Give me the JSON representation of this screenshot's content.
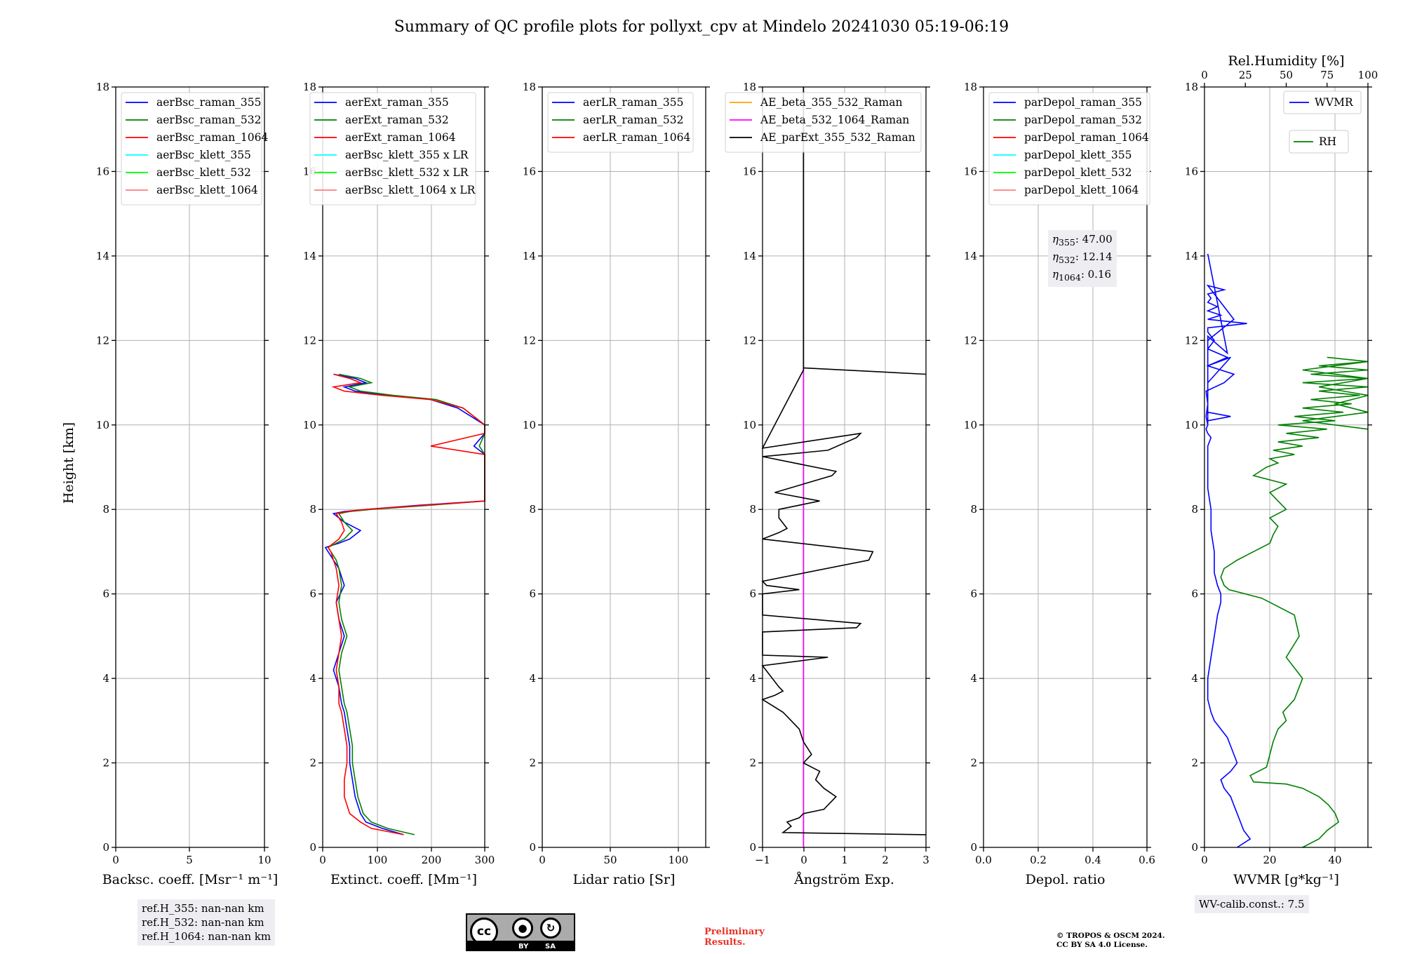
{
  "title": "Summary of QC profile plots for pollyxt_cpv at Mindelo 20241030 05:19-06:19",
  "ylabel": "Height [km]",
  "colors": {
    "blue": "#0000ff",
    "green": "#008000",
    "red": "#ff0000",
    "cyan": "#00ffff",
    "lime": "#00ff00",
    "salmon": "#ff7f7f",
    "orange": "#ffa500",
    "magenta": "#ff00ff",
    "black": "#000000"
  },
  "chart_data": [
    {
      "type": "line",
      "xlabel": "Backsc. coeff. [Msr⁻¹ m⁻¹]",
      "xlim": [
        -1,
        10
      ],
      "ylim": [
        0,
        18
      ],
      "xticks": [
        "0",
        "5",
        "10"
      ],
      "yticks": [
        "0",
        "2",
        "4",
        "6",
        "8",
        "10",
        "12",
        "14",
        "16",
        "18"
      ],
      "legend": {
        "position": "top-left",
        "entries": [
          "aerBsc_raman_355",
          "aerBsc_raman_532",
          "aerBsc_raman_1064",
          "aerBsc_klett_355",
          "aerBsc_klett_532",
          "aerBsc_klett_1064"
        ]
      },
      "series": []
    },
    {
      "type": "line",
      "xlabel": "Extinct. coeff. [Mm⁻¹]",
      "xlim": [
        0,
        300
      ],
      "ylim": [
        0,
        18
      ],
      "xticks": [
        "0",
        "100",
        "200",
        "300"
      ],
      "yticks": [
        "0",
        "2",
        "4",
        "6",
        "8",
        "10",
        "12",
        "14",
        "16",
        "18"
      ],
      "legend": {
        "position": "top-left",
        "entries": [
          "aerExt_raman_355",
          "aerExt_raman_532",
          "aerExt_raman_1064",
          "aerBsc_klett_355 x LR",
          "aerBsc_klett_532 x LR",
          "aerBsc_klett_1064 x LR"
        ]
      },
      "series": [
        {
          "name": "aerExt_raman_355",
          "color": "blue",
          "x": [
            150,
            110,
            80,
            70,
            60,
            55,
            50,
            50,
            45,
            40,
            35,
            30,
            20,
            30,
            40,
            30,
            25,
            40,
            30,
            20,
            10,
            5,
            30,
            50,
            70,
            40,
            20,
            40,
            80,
            180,
            300,
            300,
            280,
            300,
            300,
            250,
            200,
            120,
            60,
            40,
            80,
            60,
            20
          ],
          "y": [
            0.3,
            0.45,
            0.6,
            0.8,
            1.2,
            1.6,
            2.0,
            2.4,
            2.8,
            3.2,
            3.4,
            3.8,
            4.2,
            4.6,
            5.0,
            5.4,
            5.8,
            6.2,
            6.6,
            6.8,
            7.0,
            7.1,
            7.2,
            7.3,
            7.5,
            7.7,
            7.9,
            7.95,
            8.0,
            8.1,
            8.2,
            9.3,
            9.5,
            9.8,
            10.0,
            10.4,
            10.6,
            10.7,
            10.8,
            10.9,
            11.0,
            11.1,
            11.2
          ]
        },
        {
          "name": "aerExt_raman_532",
          "color": "green",
          "x": [
            170,
            120,
            90,
            75,
            65,
            60,
            55,
            55,
            50,
            45,
            40,
            35,
            30,
            35,
            45,
            35,
            30,
            35,
            30,
            25,
            15,
            10,
            25,
            40,
            55,
            40,
            30,
            50,
            90,
            200,
            300,
            300,
            290,
            300,
            300,
            260,
            210,
            130,
            70,
            50,
            90,
            70,
            30
          ],
          "y": [
            0.3,
            0.45,
            0.6,
            0.8,
            1.2,
            1.6,
            2.0,
            2.4,
            2.8,
            3.2,
            3.4,
            3.8,
            4.2,
            4.6,
            5.0,
            5.4,
            5.8,
            6.2,
            6.6,
            6.8,
            7.0,
            7.1,
            7.2,
            7.3,
            7.5,
            7.7,
            7.9,
            7.95,
            8.0,
            8.1,
            8.2,
            9.3,
            9.5,
            9.8,
            10.0,
            10.4,
            10.6,
            10.7,
            10.8,
            10.9,
            11.0,
            11.1,
            11.2
          ]
        },
        {
          "name": "aerExt_raman_1064",
          "color": "red",
          "x": [
            150,
            90,
            70,
            50,
            40,
            40,
            45,
            45,
            40,
            35,
            30,
            30,
            25,
            30,
            35,
            30,
            25,
            30,
            25,
            20,
            15,
            10,
            20,
            30,
            40,
            35,
            25,
            45,
            80,
            190,
            300,
            300,
            200,
            300,
            300,
            260,
            200,
            110,
            40,
            20,
            70,
            50,
            20
          ],
          "y": [
            0.3,
            0.45,
            0.6,
            0.8,
            1.2,
            1.6,
            2.0,
            2.4,
            2.8,
            3.2,
            3.4,
            3.8,
            4.2,
            4.6,
            5.0,
            5.4,
            5.8,
            6.2,
            6.6,
            6.8,
            7.0,
            7.1,
            7.2,
            7.3,
            7.5,
            7.7,
            7.9,
            7.95,
            8.0,
            8.1,
            8.2,
            9.3,
            9.5,
            9.8,
            10.0,
            10.4,
            10.6,
            10.7,
            10.8,
            10.9,
            11.0,
            11.1,
            11.2
          ]
        }
      ]
    },
    {
      "type": "line",
      "xlabel": "Lidar ratio [Sr]",
      "xlim": [
        0,
        120
      ],
      "ylim": [
        0,
        18
      ],
      "xticks": [
        "0",
        "50",
        "100"
      ],
      "yticks": [
        "0",
        "2",
        "4",
        "6",
        "8",
        "10",
        "12",
        "14",
        "16",
        "18"
      ],
      "legend": {
        "position": "top-left",
        "entries": [
          "aerLR_raman_355",
          "aerLR_raman_532",
          "aerLR_raman_1064"
        ]
      },
      "series": []
    },
    {
      "type": "line",
      "xlabel": "Ångström Exp.",
      "xlim": [
        -1,
        3
      ],
      "ylim": [
        0,
        18
      ],
      "xticks": [
        "−1",
        "0",
        "1",
        "2",
        "3"
      ],
      "yticks": [
        "0",
        "2",
        "4",
        "6",
        "8",
        "10",
        "12",
        "14",
        "16",
        "18"
      ],
      "legend": {
        "position": "top-left",
        "entries": [
          "AE_beta_355_532_Raman",
          "AE_beta_532_1064_Raman",
          "AE_parExt_355_532_Raman"
        ]
      },
      "series": [
        {
          "name": "AE_beta_532_1064_Raman",
          "color": "magenta",
          "x": [
            0,
            0
          ],
          "y": [
            0,
            18
          ]
        },
        {
          "name": "AE_parExt_355_532_Raman",
          "color": "black",
          "x": [
            3,
            -0.5,
            -0.3,
            -0.4,
            -0.1,
            0,
            0.5,
            0.8,
            0.5,
            0.3,
            0.4,
            0,
            0.2,
            0,
            -0.1,
            -0.3,
            -0.5,
            -1,
            -0.7,
            -0.5,
            -0.6,
            -1,
            0.2,
            0.6,
            -1,
            -1,
            1.3,
            1.4,
            -1,
            -1,
            -0.1,
            -0.9,
            -1,
            1.6,
            1.7,
            -1,
            -0.6,
            -0.4,
            -0.6,
            -0.6,
            0.4,
            -0.7,
            0.7,
            0.8,
            -1,
            0.6,
            1.3,
            1.4,
            -1,
            0,
            0,
            3,
            0,
            0
          ],
          "y": [
            0.3,
            0.35,
            0.5,
            0.6,
            0.7,
            0.8,
            0.9,
            1.2,
            1.4,
            1.6,
            1.8,
            2.0,
            2.2,
            2.5,
            2.8,
            3.0,
            3.2,
            3.5,
            3.6,
            3.7,
            3.8,
            4.3,
            4.45,
            4.5,
            4.55,
            5.1,
            5.2,
            5.3,
            5.5,
            6.0,
            6.1,
            6.2,
            6.3,
            6.8,
            7.0,
            7.3,
            7.45,
            7.55,
            7.8,
            8.0,
            8.2,
            8.4,
            8.8,
            8.9,
            9.25,
            9.4,
            9.7,
            9.8,
            9.45,
            11.3,
            11.35,
            11.2,
            11.35,
            18
          ]
        }
      ]
    },
    {
      "type": "line",
      "xlabel": "Depol. ratio",
      "xlim": [
        0,
        0.6
      ],
      "ylim": [
        0,
        18
      ],
      "xticks": [
        "0.0",
        "0.2",
        "0.4",
        "0.6"
      ],
      "yticks": [
        "0",
        "2",
        "4",
        "6",
        "8",
        "10",
        "12",
        "14",
        "16",
        "18"
      ],
      "legend": {
        "position": "top-left",
        "entries": [
          "parDepol_raman_355",
          "parDepol_raman_532",
          "parDepol_raman_1064",
          "parDepol_klett_355",
          "parDepol_klett_532",
          "parDepol_klett_1064"
        ]
      },
      "series": []
    },
    {
      "type": "line",
      "xlabel": "WVMR [g*kg⁻¹]",
      "xlim": [
        0,
        50
      ],
      "ylim": [
        0,
        18
      ],
      "x2label": "Rel.Humidity [%]",
      "x2lim": [
        0,
        100
      ],
      "xticks": [
        "0",
        "20",
        "40"
      ],
      "x2ticks": [
        "0",
        "25",
        "50",
        "75",
        "100"
      ],
      "yticks": [
        "0",
        "2",
        "4",
        "6",
        "8",
        "10",
        "12",
        "14",
        "16",
        "18"
      ],
      "legend": {
        "position": "top-right",
        "entries": [
          "WVMR",
          "RH"
        ]
      },
      "series": [
        {
          "name": "WVMR",
          "color": "blue",
          "x": [
            10,
            14,
            12,
            11,
            10,
            9,
            8,
            6,
            5,
            8,
            10,
            9,
            8,
            7,
            5,
            3,
            2,
            1,
            1,
            2,
            3,
            4,
            5,
            5,
            4,
            3,
            3,
            2,
            2,
            1,
            1,
            1,
            1,
            2,
            1,
            0.5,
            1,
            0.5,
            1,
            0.5,
            6,
            9,
            1,
            7,
            1,
            3,
            1,
            1,
            13,
            1,
            5,
            1,
            4,
            1,
            2,
            1,
            6,
            1,
            9,
            1,
            1,
            1,
            8,
            1,
            1,
            1,
            1,
            1,
            1,
            1,
            8,
            1,
            1,
            1,
            7,
            1
          ],
          "y": [
            0,
            0.2,
            0.4,
            0.6,
            0.8,
            1.0,
            1.2,
            1.4,
            1.6,
            1.8,
            2.0,
            2.2,
            2.4,
            2.6,
            2.8,
            3.0,
            3.2,
            3.5,
            4.0,
            4.5,
            5.0,
            5.5,
            5.8,
            6.0,
            6.2,
            6.5,
            7.0,
            7.5,
            8.0,
            8.5,
            9.0,
            9.3,
            9.5,
            9.7,
            9.8,
            9.9,
            10.0,
            10.2,
            10.5,
            10.8,
            11.0,
            11.2,
            11.4,
            11.6,
            11.8,
            12.0,
            12.2,
            12.3,
            12.4,
            12.5,
            12.6,
            12.7,
            12.8,
            12.9,
            13.0,
            13.1,
            13.2,
            13.3,
            12.5,
            12.0,
            11.5,
            11.0,
            11.6,
            11.4,
            11.2,
            11.0,
            10.8,
            10.6,
            10.4,
            10.3,
            10.2,
            10.1,
            10.0,
            12.1,
            11.7,
            14.05
          ]
        },
        {
          "name": "RH",
          "color": "green",
          "x": [
            60,
            70,
            75,
            82,
            80,
            76,
            70,
            60,
            50,
            30,
            28,
            38,
            40,
            42,
            45,
            50,
            48,
            55,
            60,
            50,
            58,
            55,
            45,
            35,
            25,
            15,
            12,
            10,
            12,
            20,
            30,
            40,
            42,
            45,
            40,
            50,
            45,
            40,
            50,
            30,
            38,
            45,
            40,
            55,
            42,
            60,
            45,
            70,
            50,
            75,
            45,
            80,
            55,
            85,
            60,
            90,
            65,
            95,
            70,
            100,
            60,
            100,
            65,
            100,
            70,
            100,
            75,
            100,
            60,
            100,
            70,
            100,
            80,
            100,
            60,
            100
          ],
          "y": [
            0,
            0.2,
            0.4,
            0.6,
            0.8,
            1.0,
            1.2,
            1.4,
            1.5,
            1.55,
            1.7,
            1.9,
            2.2,
            2.5,
            2.8,
            3.0,
            3.2,
            3.5,
            4.0,
            4.5,
            5.0,
            5.5,
            5.7,
            5.9,
            6.0,
            6.1,
            6.2,
            6.4,
            6.6,
            6.8,
            7.0,
            7.2,
            7.4,
            7.6,
            7.8,
            8.0,
            8.2,
            8.4,
            8.6,
            8.8,
            9.0,
            9.1,
            9.2,
            9.3,
            9.4,
            9.5,
            9.6,
            9.7,
            9.8,
            9.9,
            10.0,
            10.1,
            10.2,
            10.3,
            10.4,
            10.5,
            10.6,
            10.7,
            10.8,
            10.9,
            11.0,
            11.1,
            11.2,
            11.3,
            11.4,
            11.5,
            11.6,
            11.5,
            11.3,
            11.1,
            10.9,
            10.7,
            10.5,
            10.3,
            10.1,
            9.9
          ]
        }
      ]
    }
  ],
  "annotations": {
    "ref_h": [
      "ref.H_355: nan-nan km",
      "ref.H_532: nan-nan km",
      "ref.H_1064: nan-nan km"
    ],
    "eta": {
      "labels": [
        "355",
        "532",
        "1064"
      ],
      "values": [
        ": 47.00",
        ": 12.14",
        ": 0.16"
      ]
    },
    "wv_calib": "WV-calib.const.: 7.5",
    "preliminary": "Preliminary\nResults.",
    "copyright": "© TROPOS & OSCM 2024.\nCC BY SA 4.0 License.",
    "license_badge": {
      "cc": "cc",
      "by": "BY",
      "sa": "SA"
    }
  }
}
